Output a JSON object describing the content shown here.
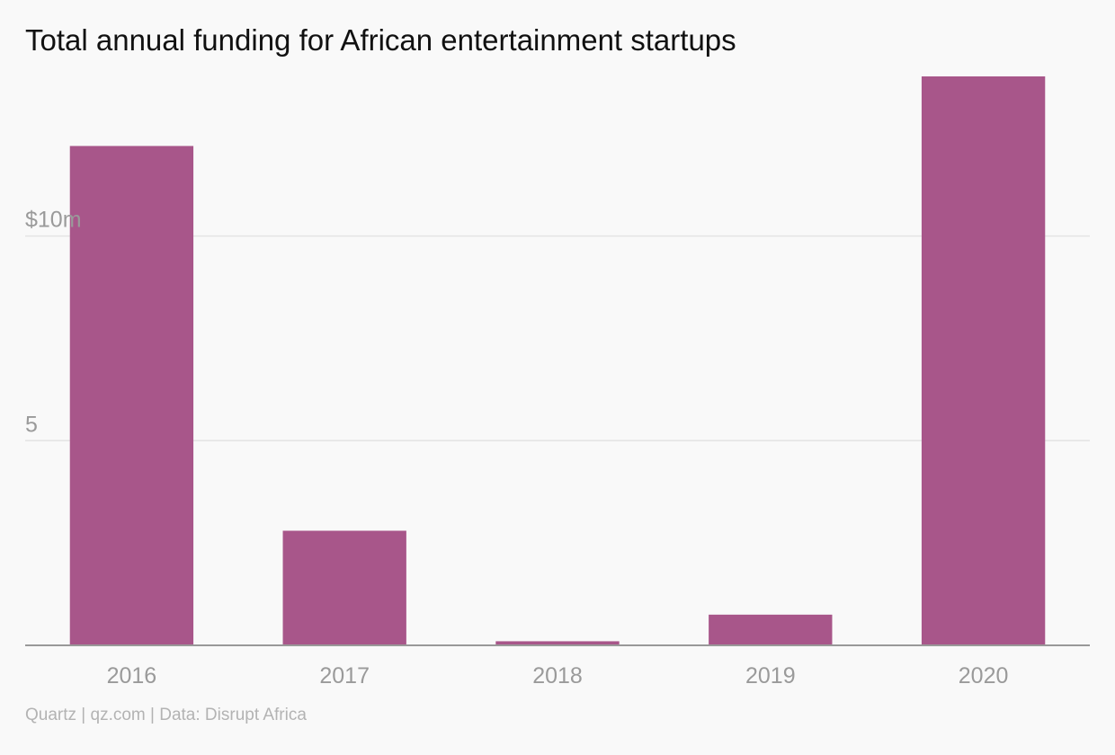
{
  "chart_data": {
    "type": "bar",
    "title": "Total annual funding for African entertainment startups",
    "categories": [
      "2016",
      "2017",
      "2018",
      "2019",
      "2020"
    ],
    "values": [
      12.2,
      2.8,
      0.1,
      0.75,
      13.9
    ],
    "ylim": [
      0,
      13.9
    ],
    "yticks": [
      {
        "value": 5,
        "label": "5"
      },
      {
        "value": 10,
        "label": "$10m"
      }
    ],
    "xlabel": "",
    "ylabel": "",
    "grid": true,
    "bar_color": "#a8568a",
    "gridline_color": "#e4e4e4",
    "axis_color": "#999999",
    "tick_label_color": "#9a9a9a"
  },
  "footer": {
    "source": "Quartz | qz.com | Data: Disrupt Africa"
  }
}
